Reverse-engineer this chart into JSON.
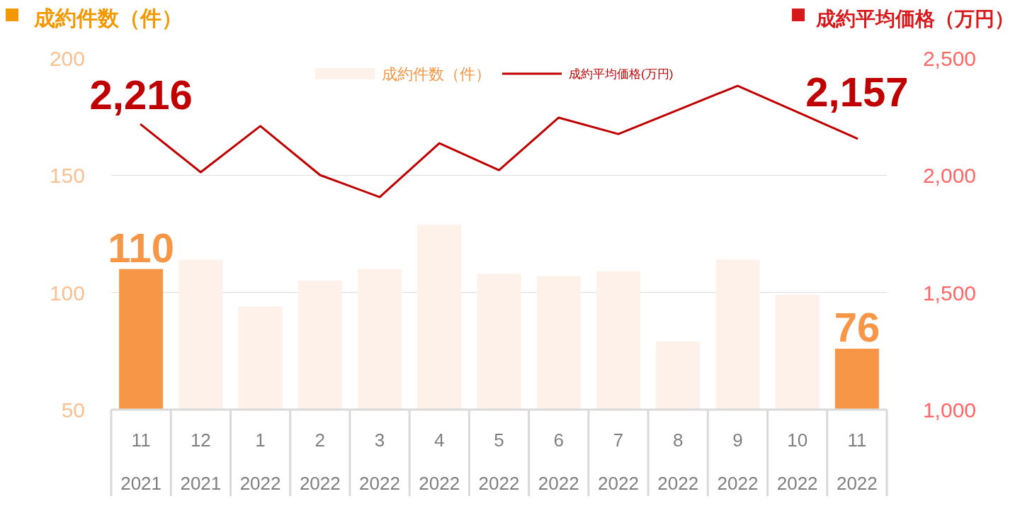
{
  "chart_data": {
    "type": "bar",
    "ylabel": "成約件数（件）",
    "y2label": "成約平均価格（万円）",
    "categories": [
      "11\n2021",
      "12\n2021",
      "1\n2022",
      "2\n2022",
      "3\n2022",
      "4\n2022",
      "5\n2022",
      "6\n2022",
      "7\n2022",
      "8\n2022",
      "9\n2022",
      "10\n2022",
      "11\n2022"
    ],
    "series": [
      {
        "name": "成約件数（件）",
        "color": "#fdf1e9",
        "colors": [
          "#f79646",
          "#fdf1e9",
          "#fdf1e9",
          "#fdf1e9",
          "#fdf1e9",
          "#fdf1e9",
          "#fdf1e9",
          "#fdf1e9",
          "#fdf1e9",
          "#fdf1e9",
          "#fdf1e9",
          "#fdf1e9",
          "#f79646"
        ],
        "values": [
          110,
          114,
          94,
          105,
          110,
          129,
          108,
          107,
          109,
          79,
          114,
          99,
          76
        ],
        "value_labels": [
          "110",
          null,
          null,
          null,
          null,
          null,
          null,
          null,
          null,
          null,
          null,
          null,
          "76"
        ]
      },
      {
        "name": "成約平均価格(万円)",
        "type": "line",
        "axis": "y2",
        "color": "#c00000",
        "values": [
          2216,
          2013,
          2210,
          2001,
          1907,
          2137,
          2022,
          2246,
          2176,
          2279,
          2382,
          2270,
          2157
        ],
        "value_labels": [
          "2,216",
          null,
          null,
          null,
          null,
          null,
          null,
          null,
          null,
          null,
          null,
          null,
          "2,157"
        ]
      }
    ],
    "ylim": [
      50,
      200
    ],
    "yticks": [
      50,
      100,
      150,
      200
    ],
    "y2lim": [
      1000,
      2500
    ],
    "y2ticks": [
      {
        "value": 1000,
        "label": "1,000"
      },
      {
        "value": 1500,
        "label": "1,500"
      },
      {
        "value": 2000,
        "label": "2,000"
      },
      {
        "value": 2500,
        "label": "2,500"
      }
    ],
    "grid": "y",
    "legend": "top",
    "marker": "none",
    "line_style": "solid"
  }
}
